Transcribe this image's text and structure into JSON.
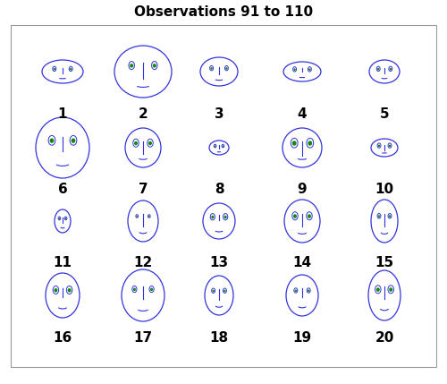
{
  "chart_data": {
    "type": "faces",
    "title": "Observations 91 to 110",
    "tick_labels": false,
    "faces": [
      {
        "label": "1",
        "width": 46,
        "height": 26,
        "eye_size": 3,
        "nose_length": 6
      },
      {
        "label": "2",
        "width": 64,
        "height": 58,
        "eye_size": 5,
        "nose_length": 18
      },
      {
        "label": "3",
        "width": 42,
        "height": 32,
        "eye_size": 3,
        "nose_length": 8
      },
      {
        "label": "4",
        "width": 42,
        "height": 22,
        "eye_size": 3,
        "nose_length": 4
      },
      {
        "label": "5",
        "width": 34,
        "height": 26,
        "eye_size": 3,
        "nose_length": 6
      },
      {
        "label": "6",
        "width": 60,
        "height": 68,
        "eye_size": 6,
        "nose_length": 16
      },
      {
        "label": "7",
        "width": 40,
        "height": 44,
        "eye_size": 5,
        "nose_length": 14
      },
      {
        "label": "8",
        "width": 22,
        "height": 16,
        "eye_size": 2,
        "nose_length": 4
      },
      {
        "label": "9",
        "width": 44,
        "height": 44,
        "eye_size": 6,
        "nose_length": 16
      },
      {
        "label": "10",
        "width": 30,
        "height": 20,
        "eye_size": 3,
        "nose_length": 6
      },
      {
        "label": "11",
        "width": 18,
        "height": 26,
        "eye_size": 2,
        "nose_length": 6
      },
      {
        "label": "12",
        "width": 34,
        "height": 46,
        "eye_size": 2,
        "nose_length": 14
      },
      {
        "label": "13",
        "width": 36,
        "height": 40,
        "eye_size": 4,
        "nose_length": 6
      },
      {
        "label": "14",
        "width": 40,
        "height": 48,
        "eye_size": 5,
        "nose_length": 14
      },
      {
        "label": "15",
        "width": 30,
        "height": 48,
        "eye_size": 3,
        "nose_length": 14
      },
      {
        "label": "16",
        "width": 38,
        "height": 50,
        "eye_size": 5,
        "nose_length": 10
      },
      {
        "label": "17",
        "width": 48,
        "height": 58,
        "eye_size": 4,
        "nose_length": 14
      },
      {
        "label": "18",
        "width": 32,
        "height": 44,
        "eye_size": 3,
        "nose_length": 12
      },
      {
        "label": "19",
        "width": 36,
        "height": 46,
        "eye_size": 3,
        "nose_length": 10
      },
      {
        "label": "20",
        "width": 36,
        "height": 56,
        "eye_size": 5,
        "nose_length": 14
      }
    ]
  }
}
